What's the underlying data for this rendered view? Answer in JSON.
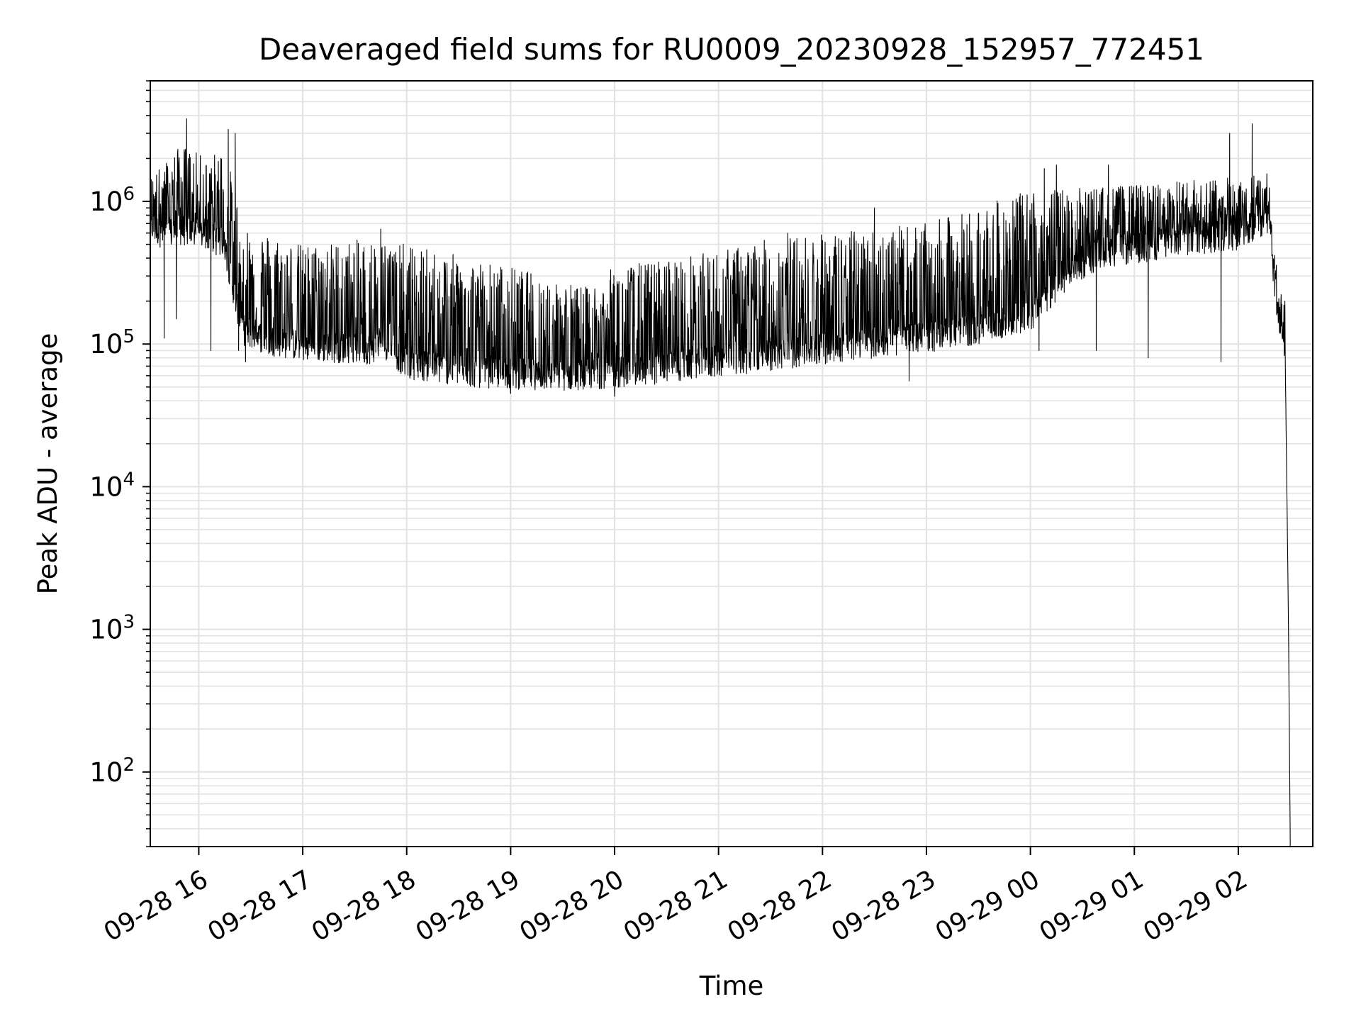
{
  "chart_data": {
    "type": "line",
    "title": "Deaveraged field sums for RU0009_20230928_152957_772451",
    "xlabel": "Time",
    "ylabel": "Peak ADU - average",
    "yscale": "log",
    "ylim": [
      30,
      7000000
    ],
    "xlim": [
      "2023-09-28 15:32",
      "2023-09-29 02:43"
    ],
    "grid": "on",
    "x_ticks": [
      {
        "t": "2023-09-28 16:00",
        "label": "09-28 16"
      },
      {
        "t": "2023-09-28 17:00",
        "label": "09-28 17"
      },
      {
        "t": "2023-09-28 18:00",
        "label": "09-28 18"
      },
      {
        "t": "2023-09-28 19:00",
        "label": "09-28 19"
      },
      {
        "t": "2023-09-28 20:00",
        "label": "09-28 20"
      },
      {
        "t": "2023-09-28 21:00",
        "label": "09-28 21"
      },
      {
        "t": "2023-09-28 22:00",
        "label": "09-28 22"
      },
      {
        "t": "2023-09-28 23:00",
        "label": "09-28 23"
      },
      {
        "t": "2023-09-29 00:00",
        "label": "09-29 00"
      },
      {
        "t": "2023-09-29 01:00",
        "label": "09-29 01"
      },
      {
        "t": "2023-09-29 02:00",
        "label": "09-29 02"
      }
    ],
    "y_ticks": [
      {
        "value": 100,
        "base": "10",
        "exp": "2"
      },
      {
        "value": 1000,
        "base": "10",
        "exp": "3"
      },
      {
        "value": 10000,
        "base": "10",
        "exp": "4"
      },
      {
        "value": 100000,
        "base": "10",
        "exp": "5"
      },
      {
        "value": 1000000,
        "base": "10",
        "exp": "6"
      }
    ],
    "series": [
      {
        "color": "#000000",
        "baseline": [
          [
            "2023-09-28 15:32",
            700000
          ],
          [
            "2023-09-28 15:40",
            600000
          ],
          [
            "2023-09-28 15:50",
            650000
          ],
          [
            "2023-09-28 16:05",
            600000
          ],
          [
            "2023-09-28 16:15",
            500000
          ],
          [
            "2023-09-28 16:20",
            250000
          ],
          [
            "2023-09-28 16:25",
            130000
          ],
          [
            "2023-09-28 16:40",
            110000
          ],
          [
            "2023-09-28 17:00",
            100000
          ],
          [
            "2023-09-28 17:40",
            95000
          ],
          [
            "2023-09-28 17:45",
            110000
          ],
          [
            "2023-09-28 18:00",
            75000
          ],
          [
            "2023-09-28 18:40",
            65000
          ],
          [
            "2023-09-28 19:30",
            62000
          ],
          [
            "2023-09-28 20:00",
            65000
          ],
          [
            "2023-09-28 20:30",
            70000
          ],
          [
            "2023-09-28 21:00",
            78000
          ],
          [
            "2023-09-28 21:30",
            85000
          ],
          [
            "2023-09-28 22:00",
            95000
          ],
          [
            "2023-09-28 22:30",
            105000
          ],
          [
            "2023-09-28 23:00",
            115000
          ],
          [
            "2023-09-28 23:30",
            130000
          ],
          [
            "2023-09-29 00:00",
            160000
          ],
          [
            "2023-09-29 00:20",
            300000
          ],
          [
            "2023-09-29 00:40",
            450000
          ],
          [
            "2023-09-29 01:00",
            480000
          ],
          [
            "2023-09-29 01:30",
            550000
          ],
          [
            "2023-09-29 02:00",
            600000
          ],
          [
            "2023-09-29 02:18",
            800000
          ],
          [
            "2023-09-29 02:22",
            180000
          ],
          [
            "2023-09-29 02:27",
            100000
          ],
          [
            "2023-09-29 02:28",
            10000
          ],
          [
            "2023-09-29 02:29",
            1000
          ],
          [
            "2023-09-29 02:30",
            30
          ]
        ],
        "envelope_top": [
          [
            "2023-09-28 15:32",
            1500000
          ],
          [
            "2023-09-28 15:50",
            2500000
          ],
          [
            "2023-09-28 16:05",
            2000000
          ],
          [
            "2023-09-28 16:15",
            2500000
          ],
          [
            "2023-09-28 16:25",
            700000
          ],
          [
            "2023-09-28 17:00",
            500000
          ],
          [
            "2023-09-28 17:40",
            550000
          ],
          [
            "2023-09-28 18:00",
            500000
          ],
          [
            "2023-09-28 19:00",
            350000
          ],
          [
            "2023-09-28 19:45",
            250000
          ],
          [
            "2023-09-28 20:00",
            350000
          ],
          [
            "2023-09-28 20:30",
            400000
          ],
          [
            "2023-09-28 21:00",
            450000
          ],
          [
            "2023-09-28 21:30",
            550000
          ],
          [
            "2023-09-28 22:00",
            600000
          ],
          [
            "2023-09-28 22:30",
            650000
          ],
          [
            "2023-09-28 23:00",
            700000
          ],
          [
            "2023-09-29 00:00",
            1200000
          ],
          [
            "2023-09-29 01:00",
            1300000
          ],
          [
            "2023-09-29 02:00",
            1500000
          ],
          [
            "2023-09-29 02:18",
            1600000
          ]
        ],
        "spikes": [
          [
            "2023-09-28 15:53",
            3800000
          ],
          [
            "2023-09-28 16:17",
            3200000
          ],
          [
            "2023-09-28 16:21",
            3000000
          ],
          [
            "2023-09-28 17:45",
            640000
          ],
          [
            "2023-09-28 21:40",
            600000
          ],
          [
            "2023-09-28 22:30",
            900000
          ],
          [
            "2023-09-29 00:08",
            1700000
          ],
          [
            "2023-09-29 00:15",
            1800000
          ],
          [
            "2023-09-29 00:45",
            1800000
          ],
          [
            "2023-09-29 01:55",
            3000000
          ],
          [
            "2023-09-29 02:08",
            3500000
          ]
        ],
        "dips": [
          [
            "2023-09-28 15:40",
            110000
          ],
          [
            "2023-09-28 15:47",
            150000
          ],
          [
            "2023-09-28 16:07",
            90000
          ],
          [
            "2023-09-28 16:23",
            90000
          ],
          [
            "2023-09-28 16:27",
            75000
          ],
          [
            "2023-09-28 19:00",
            45000
          ],
          [
            "2023-09-28 20:00",
            43000
          ],
          [
            "2023-09-28 22:50",
            55000
          ],
          [
            "2023-09-29 00:05",
            90000
          ],
          [
            "2023-09-29 00:38",
            90000
          ],
          [
            "2023-09-29 01:08",
            80000
          ],
          [
            "2023-09-29 01:50",
            75000
          ]
        ]
      }
    ]
  }
}
